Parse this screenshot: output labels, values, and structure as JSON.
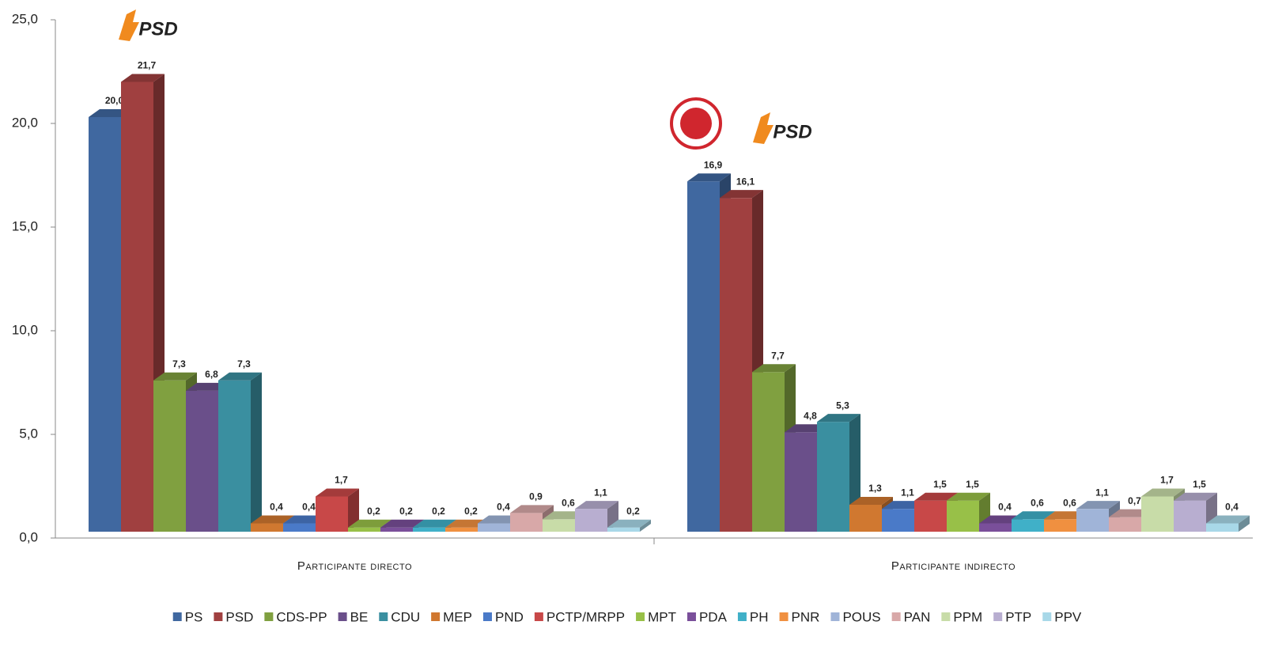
{
  "chart_data": {
    "type": "bar3d",
    "categories": [
      "Participante directo",
      "Participante indirecto"
    ],
    "ylim": [
      0,
      25
    ],
    "yticks": [
      {
        "value": 0,
        "label": "0,0"
      },
      {
        "value": 5,
        "label": "5,0"
      },
      {
        "value": 10,
        "label": "10,0"
      },
      {
        "value": 15,
        "label": "15,0"
      },
      {
        "value": 20,
        "label": "20,0"
      },
      {
        "value": 25,
        "label": "25,0"
      }
    ],
    "annotations": [
      "PSD",
      "PSD"
    ],
    "legend": "bottom",
    "series": [
      {
        "name": "PS",
        "color": "#4068a0",
        "values": [
          20.0,
          16.9
        ],
        "value_labels": [
          "20,0",
          "16,9"
        ]
      },
      {
        "name": "PSD",
        "color": "#a04040",
        "values": [
          21.7,
          16.1
        ],
        "value_labels": [
          "21,7",
          "16,1"
        ]
      },
      {
        "name": "CDS-PP",
        "color": "#80a040",
        "values": [
          7.3,
          7.7
        ],
        "value_labels": [
          "7,3",
          "7,7"
        ]
      },
      {
        "name": "BE",
        "color": "#6a4f8a",
        "values": [
          6.8,
          4.8
        ],
        "value_labels": [
          "6,8",
          "4,8"
        ]
      },
      {
        "name": "CDU",
        "color": "#3a8fa0",
        "values": [
          7.3,
          5.3
        ],
        "value_labels": [
          "7,3",
          "5,3"
        ]
      },
      {
        "name": "MEP",
        "color": "#d07830",
        "values": [
          0.4,
          1.3
        ],
        "value_labels": [
          "0,4",
          "1,3"
        ]
      },
      {
        "name": "PND",
        "color": "#4a7ac8",
        "values": [
          0.4,
          1.1
        ],
        "value_labels": [
          "0,4",
          "1,1"
        ]
      },
      {
        "name": "PCTP/MRPP",
        "color": "#c84848",
        "values": [
          1.7,
          1.5
        ],
        "value_labels": [
          "1,7",
          "1,5"
        ]
      },
      {
        "name": "MPT",
        "color": "#98c048",
        "values": [
          0.2,
          1.5
        ],
        "value_labels": [
          "0,2",
          "1,5"
        ]
      },
      {
        "name": "PDA",
        "color": "#7a4f9a",
        "values": [
          0.2,
          0.4
        ],
        "value_labels": [
          "0,2",
          "0,4"
        ]
      },
      {
        "name": "PH",
        "color": "#40b0c8",
        "values": [
          0.2,
          0.6
        ],
        "value_labels": [
          "0,2",
          "0,6"
        ]
      },
      {
        "name": "PNR",
        "color": "#f09040",
        "values": [
          0.2,
          0.6
        ],
        "value_labels": [
          "0,2",
          "0,6"
        ]
      },
      {
        "name": "POUS",
        "color": "#a0b4d8",
        "values": [
          0.4,
          1.1
        ],
        "value_labels": [
          "0,4",
          "1,1"
        ]
      },
      {
        "name": "PAN",
        "color": "#d8a8a8",
        "values": [
          0.9,
          0.7
        ],
        "value_labels": [
          "0,9",
          "0,7"
        ]
      },
      {
        "name": "PPM",
        "color": "#c8dca8",
        "values": [
          0.6,
          1.7
        ],
        "value_labels": [
          "0,6",
          "1,7"
        ]
      },
      {
        "name": "PTP",
        "color": "#b8aed0",
        "values": [
          1.1,
          1.5
        ],
        "value_labels": [
          "1,1",
          "1,5"
        ]
      },
      {
        "name": "PPV",
        "color": "#a8d8e8",
        "values": [
          0.2,
          0.4
        ],
        "value_labels": [
          "0,2",
          "0,4"
        ]
      }
    ]
  }
}
